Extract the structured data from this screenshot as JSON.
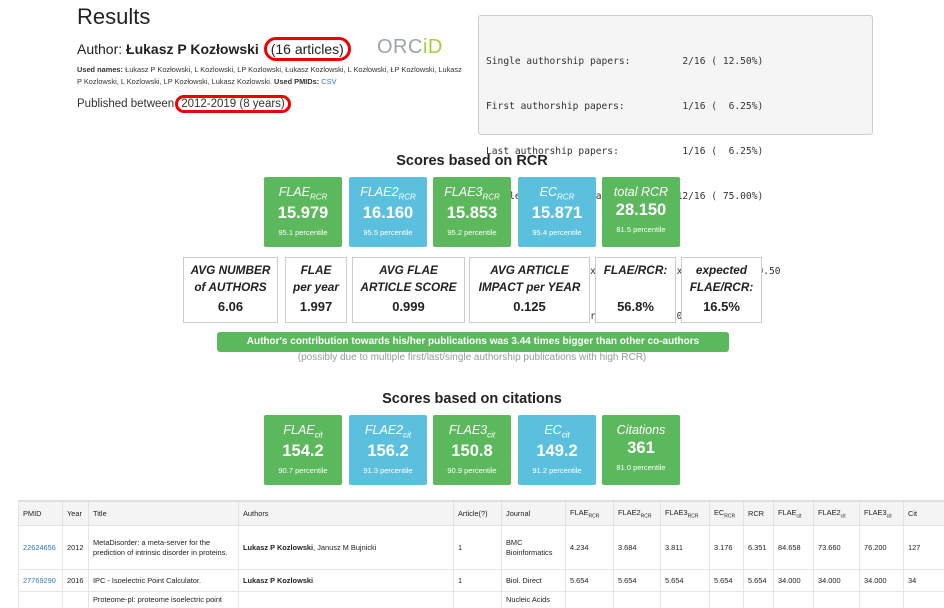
{
  "header": {
    "title": "Results",
    "author_prefix": "Author:",
    "author_name": "Łukasz P Kozłowski",
    "articles": "(16 articles)",
    "orcid_text": "ORC",
    "orcid_id": "iD",
    "used_names_label": "Used names:",
    "used_names": "Łukasz P Kozłowski, L Kozlowski, LP Kozlowski, Łukasz Kozlowski, L Kozłowski, ŁP Kozlowski, Lukasz P Kozlowski, L Kozlowski, LP Kozłowski, Lukasz Kozlowski.",
    "used_pmids_label": "Used PMIDs:",
    "csv_link": "CSV",
    "published_prefix": "Published between",
    "published_range": "2012-2019 (8 years)"
  },
  "stats": {
    "lines": [
      "Single authorship papers:         2/16 ( 12.50%)",
      "First authorship papers:          1/16 (  6.25%)",
      "Last authorship papers:           1/16 (  6.25%)",
      "Middle authorship papers:        12/16 ( 75.00%)",
      "",
      "H-index 10, M-index 1.25, fH-index 4, fM-index 0.50",
      "Avg number of papers per year: 2.00"
    ]
  },
  "rcr": {
    "section_title": "Scores based on RCR",
    "tiles": [
      {
        "name": "FLAE",
        "sub": "RCR",
        "value": "15.979",
        "percentile": "95.1 percentile",
        "color": "#5cb85c"
      },
      {
        "name": "FLAE2",
        "sub": "RCR",
        "value": "16.160",
        "percentile": "95.5 percentile",
        "color": "#5bc0de"
      },
      {
        "name": "FLAE3",
        "sub": "RCR",
        "value": "15.853",
        "percentile": "95.2 percentile",
        "color": "#5cb85c"
      },
      {
        "name": "EC",
        "sub": "RCR",
        "value": "15.871",
        "percentile": "95.4 percentile",
        "color": "#5bc0de"
      },
      {
        "name": "total RCR",
        "sub": "",
        "value": "28.150",
        "percentile": "81.5 percentile",
        "color": "#5cb85c"
      }
    ],
    "metrics": [
      {
        "l1": "AVG NUMBER",
        "l2": "of AUTHORS",
        "value": "6.06"
      },
      {
        "l1": "FLAE",
        "l2": "per year",
        "value": "1.997"
      },
      {
        "l1": "AVG FLAE",
        "l2": "ARTICLE SCORE",
        "value": "0.999"
      },
      {
        "l1": "AVG ARTICLE",
        "l2": "IMPACT per YEAR",
        "value": "0.125"
      },
      {
        "l1": "FLAE/RCR:",
        "l2": "",
        "value": "56.8%"
      },
      {
        "l1": "expected",
        "l2": "FLAE/RCR:",
        "value": "16.5%"
      }
    ],
    "contribution": "Author's contribution towards his/her publications was 3.44 times bigger than other co-authors",
    "contribution_note": "(possibly due to multiple first/last/single authorship publications with high RCR)"
  },
  "citations": {
    "section_title": "Scores based on citations",
    "tiles": [
      {
        "name": "FLAE",
        "sub": "cit",
        "value": "154.2",
        "percentile": "90.7 percentile",
        "color": "#5cb85c"
      },
      {
        "name": "FLAE2",
        "sub": "cit",
        "value": "156.2",
        "percentile": "91.3 percentile",
        "color": "#5bc0de"
      },
      {
        "name": "FLAE3",
        "sub": "cit",
        "value": "150.8",
        "percentile": "90.9 percentile",
        "color": "#5cb85c"
      },
      {
        "name": "EC",
        "sub": "cit",
        "value": "149.2",
        "percentile": "91.2 percentile",
        "color": "#5bc0de"
      },
      {
        "name": "Citations",
        "sub": "",
        "value": "361",
        "percentile": "81.0 percentile",
        "color": "#5cb85c"
      }
    ]
  },
  "table": {
    "headers": [
      {
        "text": "PMID",
        "sub": ""
      },
      {
        "text": "Year",
        "sub": ""
      },
      {
        "text": "Title",
        "sub": ""
      },
      {
        "text": "Authors",
        "sub": ""
      },
      {
        "text": "Article(?)",
        "sub": ""
      },
      {
        "text": "Journal",
        "sub": ""
      },
      {
        "text": "FLAE",
        "sub": "RCR"
      },
      {
        "text": "FLAE2",
        "sub": "RCR"
      },
      {
        "text": "FLAE3",
        "sub": "RCR"
      },
      {
        "text": "EC",
        "sub": "RCR"
      },
      {
        "text": "RCR",
        "sub": ""
      },
      {
        "text": "FLAE",
        "sub": "cit"
      },
      {
        "text": "FLAE2",
        "sub": "cit"
      },
      {
        "text": "FLAE3",
        "sub": "cit"
      },
      {
        "text": "Cit",
        "sub": ""
      }
    ],
    "rows": [
      {
        "pmid": "22624656",
        "year": "2012",
        "title": "MetaDisorder: a meta-server for the prediction of intrinsic disorder in proteins.",
        "author_bold": "Lukasz P Kozlowski",
        "author_rest": ", Janusz M Bujnicki",
        "article": "1",
        "journal": "BMC Bioinformatics",
        "v": [
          "4.234",
          "3.684",
          "3.811",
          "3.176",
          "6.351",
          "84.658",
          "73.660",
          "76.200",
          "127"
        ]
      },
      {
        "pmid": "27769290",
        "year": "2016",
        "title": "IPC - Isoelectric Point Calculator.",
        "author_bold": "Lukasz P Kozlowski",
        "author_rest": "",
        "article": "1",
        "journal": "Biol. Direct",
        "v": [
          "5.654",
          "5.654",
          "5.654",
          "5.654",
          "5.654",
          "34.000",
          "34.000",
          "34.000",
          "34"
        ]
      },
      {
        "pmid": "",
        "year": "",
        "title": "Proteome-pI: proteome isoelectric point",
        "author_bold": "",
        "author_rest": "",
        "article": "",
        "journal": "Nucleic Acids",
        "v": [
          "",
          "",
          "",
          "",
          "",
          "",
          "",
          "",
          ""
        ]
      }
    ]
  }
}
